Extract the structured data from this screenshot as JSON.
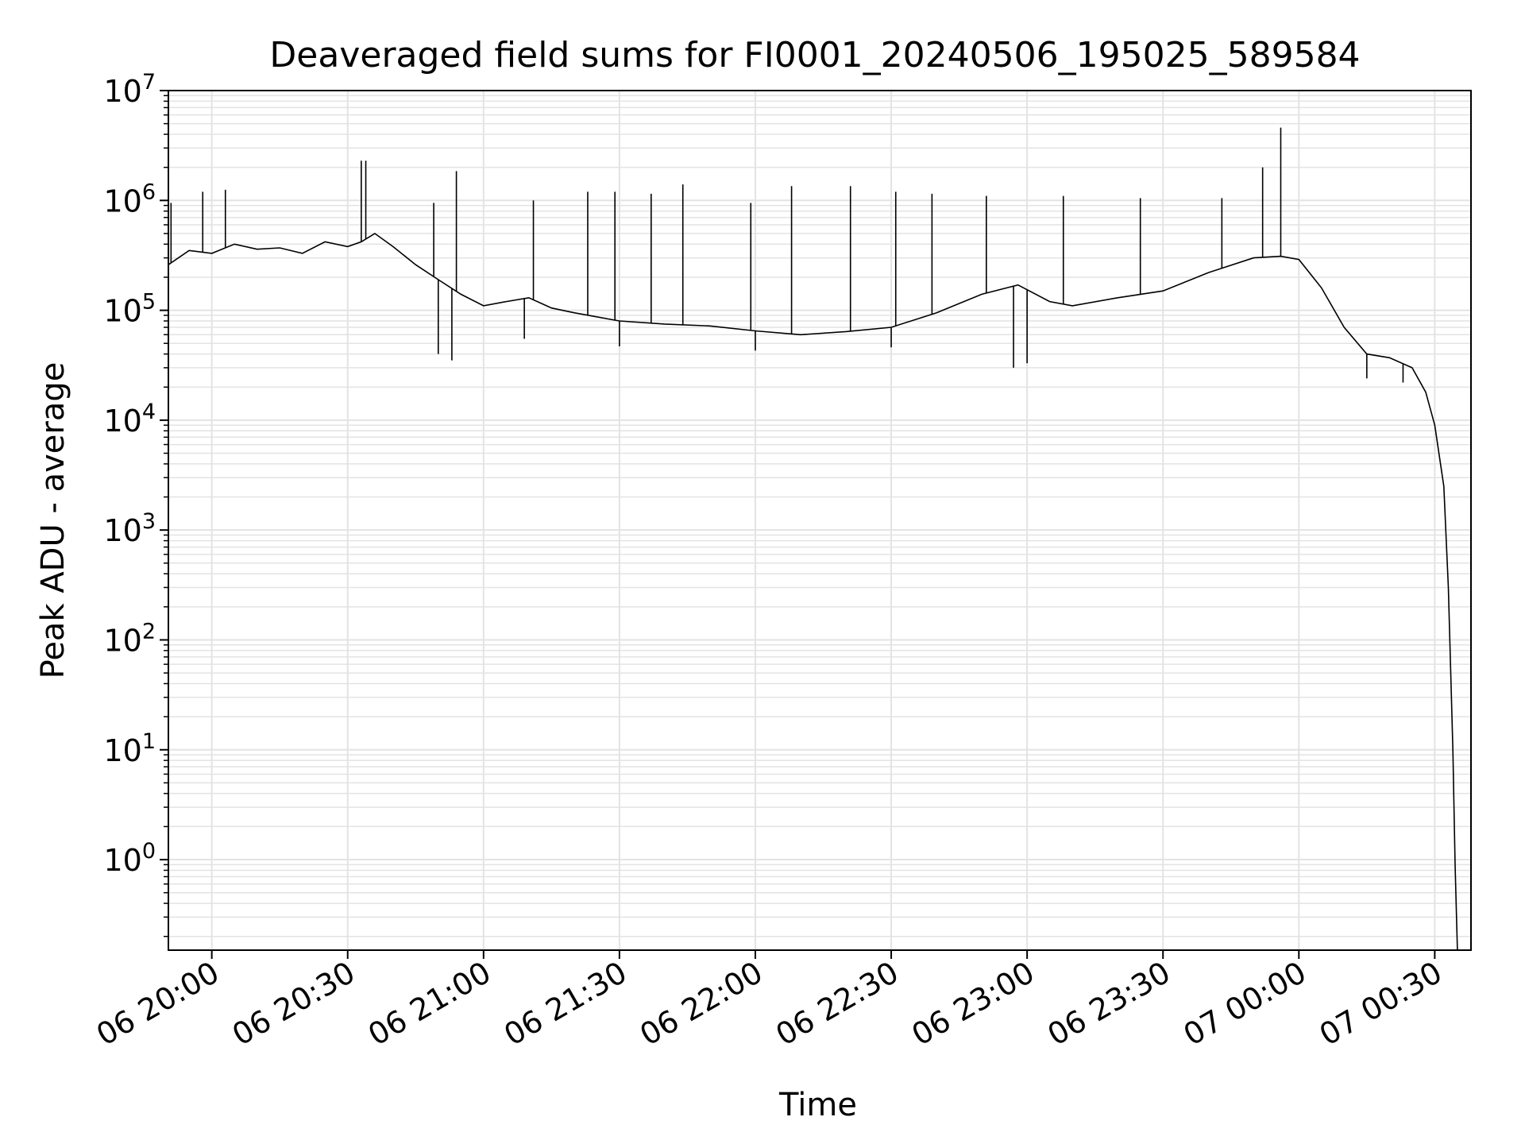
{
  "chart_data": {
    "type": "line",
    "title": "Deaveraged field sums for FI0001_20240506_195025_589584",
    "xlabel": "Time",
    "ylabel": "Peak ADU - average",
    "yscale": "log",
    "ylim": [
      0.15,
      10000000
    ],
    "xlim": [
      "2024-05-06 19:50:25",
      "2024-05-07 00:38:00"
    ],
    "grid": true,
    "line_color": "#000000",
    "x_ticks": [
      {
        "value": "2024-05-06 20:00",
        "label": "06 20:00"
      },
      {
        "value": "2024-05-06 20:30",
        "label": "06 20:30"
      },
      {
        "value": "2024-05-06 21:00",
        "label": "06 21:00"
      },
      {
        "value": "2024-05-06 21:30",
        "label": "06 21:30"
      },
      {
        "value": "2024-05-06 22:00",
        "label": "06 22:00"
      },
      {
        "value": "2024-05-06 22:30",
        "label": "06 22:30"
      },
      {
        "value": "2024-05-06 23:00",
        "label": "06 23:00"
      },
      {
        "value": "2024-05-06 23:30",
        "label": "06 23:30"
      },
      {
        "value": "2024-05-07 00:00",
        "label": "07 00:00"
      },
      {
        "value": "2024-05-07 00:30",
        "label": "07 00:30"
      }
    ],
    "y_ticks": [
      {
        "value": 1,
        "base": "10",
        "exp": "0"
      },
      {
        "value": 10,
        "base": "10",
        "exp": "1"
      },
      {
        "value": 100,
        "base": "10",
        "exp": "2"
      },
      {
        "value": 1000,
        "base": "10",
        "exp": "3"
      },
      {
        "value": 10000,
        "base": "10",
        "exp": "4"
      },
      {
        "value": 100000,
        "base": "10",
        "exp": "5"
      },
      {
        "value": 1000000,
        "base": "10",
        "exp": "6"
      },
      {
        "value": 10000000,
        "base": "10",
        "exp": "7"
      }
    ],
    "series": [
      {
        "x": [
          "2024-05-06 19:50:25",
          "2024-05-06 19:55",
          "2024-05-06 20:00",
          "2024-05-06 20:05",
          "2024-05-06 20:10",
          "2024-05-06 20:15",
          "2024-05-06 20:20",
          "2024-05-06 20:25",
          "2024-05-06 20:30",
          "2024-05-06 20:33",
          "2024-05-06 20:36",
          "2024-05-06 20:40",
          "2024-05-06 20:45",
          "2024-05-06 20:50",
          "2024-05-06 20:55",
          "2024-05-06 21:00",
          "2024-05-06 21:05",
          "2024-05-06 21:10",
          "2024-05-06 21:15",
          "2024-05-06 21:20",
          "2024-05-06 21:30",
          "2024-05-06 21:40",
          "2024-05-06 21:50",
          "2024-05-06 22:00",
          "2024-05-06 22:10",
          "2024-05-06 22:20",
          "2024-05-06 22:30",
          "2024-05-06 22:40",
          "2024-05-06 22:50",
          "2024-05-06 22:58",
          "2024-05-06 23:05",
          "2024-05-06 23:10",
          "2024-05-06 23:20",
          "2024-05-06 23:30",
          "2024-05-06 23:40",
          "2024-05-06 23:50",
          "2024-05-06 23:56",
          "2024-05-07 00:00",
          "2024-05-07 00:05",
          "2024-05-07 00:10",
          "2024-05-07 00:15",
          "2024-05-07 00:20",
          "2024-05-07 00:25",
          "2024-05-07 00:28",
          "2024-05-07 00:30",
          "2024-05-07 00:32",
          "2024-05-07 00:33",
          "2024-05-07 00:34",
          "2024-05-07 00:34:30",
          "2024-05-07 00:35"
        ],
        "y": [
          260000,
          350000,
          330000,
          400000,
          360000,
          370000,
          330000,
          420000,
          380000,
          420000,
          500000,
          380000,
          260000,
          190000,
          140000,
          110000,
          120000,
          130000,
          105000,
          95000,
          80000,
          75000,
          72000,
          65000,
          60000,
          64000,
          70000,
          95000,
          140000,
          170000,
          120000,
          110000,
          130000,
          150000,
          220000,
          300000,
          310000,
          290000,
          160000,
          70000,
          40000,
          37000,
          30000,
          18000,
          9000,
          2500,
          300,
          10,
          0.9,
          0.15
        ]
      }
    ],
    "spikes": [
      {
        "x": "2024-05-06 19:51",
        "y": 950000
      },
      {
        "x": "2024-05-06 19:58",
        "y": 1200000
      },
      {
        "x": "2024-05-06 20:03",
        "y": 1250000
      },
      {
        "x": "2024-05-06 20:33",
        "y": 2300000
      },
      {
        "x": "2024-05-06 20:34",
        "y": 2300000
      },
      {
        "x": "2024-05-06 20:49",
        "y": 950000
      },
      {
        "x": "2024-05-06 20:54",
        "y": 1850000
      },
      {
        "x": "2024-05-06 21:11",
        "y": 1000000
      },
      {
        "x": "2024-05-06 21:23",
        "y": 1200000
      },
      {
        "x": "2024-05-06 21:29",
        "y": 1200000
      },
      {
        "x": "2024-05-06 21:37",
        "y": 1150000
      },
      {
        "x": "2024-05-06 21:44",
        "y": 1400000
      },
      {
        "x": "2024-05-06 21:59",
        "y": 950000
      },
      {
        "x": "2024-05-06 22:08",
        "y": 1350000
      },
      {
        "x": "2024-05-06 22:21",
        "y": 1350000
      },
      {
        "x": "2024-05-06 22:31",
        "y": 1200000
      },
      {
        "x": "2024-05-06 22:39",
        "y": 1150000
      },
      {
        "x": "2024-05-06 22:51",
        "y": 1100000
      },
      {
        "x": "2024-05-06 23:08",
        "y": 1100000
      },
      {
        "x": "2024-05-06 23:25",
        "y": 1050000
      },
      {
        "x": "2024-05-06 23:43",
        "y": 1050000
      },
      {
        "x": "2024-05-06 23:52",
        "y": 2000000
      },
      {
        "x": "2024-05-06 23:56",
        "y": 4600000
      }
    ],
    "dips": [
      {
        "x": "2024-05-06 20:50",
        "y": 40000
      },
      {
        "x": "2024-05-06 20:53",
        "y": 35000
      },
      {
        "x": "2024-05-06 21:09",
        "y": 55000
      },
      {
        "x": "2024-05-06 21:30",
        "y": 47000
      },
      {
        "x": "2024-05-06 22:00",
        "y": 43000
      },
      {
        "x": "2024-05-06 22:30",
        "y": 46000
      },
      {
        "x": "2024-05-06 22:57",
        "y": 30000
      },
      {
        "x": "2024-05-06 23:00",
        "y": 33000
      },
      {
        "x": "2024-05-07 00:15",
        "y": 24000
      },
      {
        "x": "2024-05-07 00:23",
        "y": 22000
      }
    ]
  }
}
